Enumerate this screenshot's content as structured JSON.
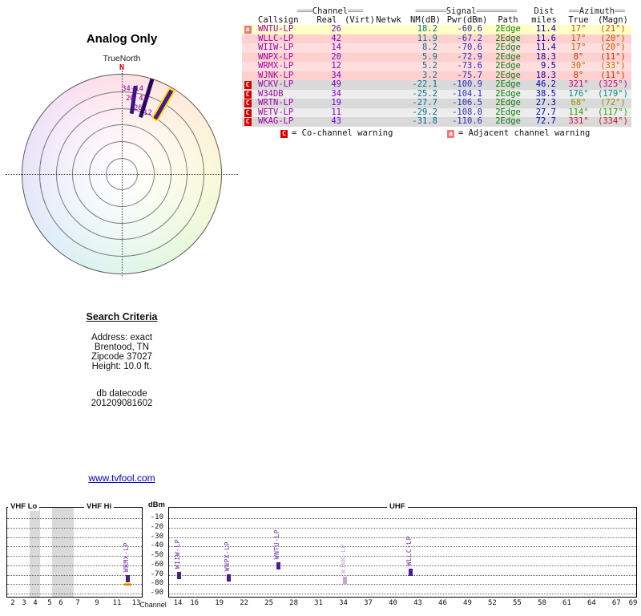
{
  "radar": {
    "title": "Analog Only",
    "orientation_label": "TrueNorth",
    "north_label": "N",
    "marker_labels": [
      "34-14",
      "20 42",
      "26",
      "12"
    ],
    "markers": [
      {
        "az": 8,
        "inner": 0.62,
        "outer": 0.9,
        "color": "#3c1480",
        "highlighted": false
      },
      {
        "az": 17,
        "inner": 0.6,
        "outer": 1.0,
        "color": "#22085c",
        "highlighted": false
      },
      {
        "az": 30,
        "inner": 0.64,
        "outer": 0.97,
        "color": "#4a1a90",
        "highlighted": true
      }
    ],
    "wheel_colors": [
      "#ffc9d4",
      "#ffdfc2",
      "#f7f4bd",
      "#dbf3c3",
      "#c9eedd",
      "#c8e2f4",
      "#d6d2f4",
      "#eccdf0",
      "#ffc9d4"
    ]
  },
  "table": {
    "group_headers": [
      {
        "pre": "═══",
        "label": "Channel",
        "post": "═══"
      },
      {
        "pre": "══════",
        "label": "Signal",
        "post": "════════"
      },
      {
        "pre": "",
        "label": "Dist",
        "post": ""
      },
      {
        "pre": "══",
        "label": "Azimuth",
        "post": "══"
      }
    ],
    "columns": [
      "Callsign",
      "Real",
      "(Virt)",
      "Netwk",
      "NM(dB)",
      "Pwr(dBm)",
      "Path",
      "miles",
      "True",
      "(Magn)"
    ],
    "rows": [
      {
        "badges": [
          "a"
        ],
        "callsign": "WNTU-LP",
        "real": "26",
        "virt": "",
        "netwk": "",
        "nm": "18.2",
        "pwr": "-60.6",
        "path": "2Edge",
        "miles": "11.4",
        "az_true": "17°",
        "az_magn": "(21°)",
        "az_color": "#c25400",
        "bg": "#ffffc6"
      },
      {
        "badges": [],
        "callsign": "WLLC-LP",
        "real": "42",
        "virt": "",
        "netwk": "",
        "nm": "11.9",
        "pwr": "-67.2",
        "path": "2Edge",
        "miles": "11.6",
        "az_true": "17°",
        "az_magn": "(20°)",
        "az_color": "#c25400",
        "bg": "#ffd0d0"
      },
      {
        "badges": [],
        "callsign": "WIIW-LP",
        "real": "14",
        "virt": "",
        "netwk": "",
        "nm": "8.2",
        "pwr": "-70.6",
        "path": "2Edge",
        "miles": "11.4",
        "az_true": "17°",
        "az_magn": "(20°)",
        "az_color": "#c25400",
        "bg": "#ffdede"
      },
      {
        "badges": [],
        "callsign": "WNPX-LP",
        "real": "20",
        "virt": "",
        "netwk": "",
        "nm": "5.9",
        "pwr": "-72.9",
        "path": "2Edge",
        "miles": "18.3",
        "az_true": "8°",
        "az_magn": "(11°)",
        "az_color": "#cc2e00",
        "bg": "#ffd0d0"
      },
      {
        "badges": [],
        "callsign": "WRMX-LP",
        "real": "12",
        "virt": "",
        "netwk": "",
        "nm": "5.2",
        "pwr": "-73.6",
        "path": "2Edge",
        "miles": "9.5",
        "az_true": "30°",
        "az_magn": "(33°)",
        "az_color": "#b07400",
        "bg": "#ffdede"
      },
      {
        "badges": [],
        "callsign": "WJNK-LP",
        "real": "34",
        "virt": "",
        "netwk": "",
        "nm": "3.2",
        "pwr": "-75.7",
        "path": "2Edge",
        "miles": "18.3",
        "az_true": "8°",
        "az_magn": "(11°)",
        "az_color": "#cc2e00",
        "bg": "#ffd0d0"
      },
      {
        "badges": [
          "C"
        ],
        "callsign": "WCKV-LP",
        "real": "49",
        "virt": "",
        "netwk": "",
        "nm": "-22.1",
        "pwr": "-100.9",
        "path": "2Edge",
        "miles": "46.2",
        "az_true": "321°",
        "az_magn": "(325°)",
        "az_color": "#d2006e",
        "bg": "#d9d9d9"
      },
      {
        "badges": [
          "C"
        ],
        "callsign": "W34DB",
        "real": "34",
        "virt": "",
        "netwk": "",
        "nm": "-25.2",
        "pwr": "-104.1",
        "path": "2Edge",
        "miles": "38.5",
        "az_true": "176°",
        "az_magn": "(179°)",
        "az_color": "#00888e",
        "bg": "#ededed"
      },
      {
        "badges": [
          "C"
        ],
        "callsign": "WRTN-LP",
        "real": "19",
        "virt": "",
        "netwk": "",
        "nm": "-27.7",
        "pwr": "-106.5",
        "path": "2Edge",
        "miles": "27.3",
        "az_true": "68°",
        "az_magn": "(72°)",
        "az_color": "#8f9400",
        "bg": "#d9d9d9"
      },
      {
        "badges": [
          "C"
        ],
        "callsign": "WETV-LP",
        "real": "11",
        "virt": "",
        "netwk": "",
        "nm": "-29.2",
        "pwr": "-108.0",
        "path": "2Edge",
        "miles": "27.7",
        "az_true": "114°",
        "az_magn": "(117°)",
        "az_color": "#2e9e00",
        "bg": "#ededed"
      },
      {
        "badges": [
          "C"
        ],
        "callsign": "WKAG-LP",
        "real": "43",
        "virt": "",
        "netwk": "",
        "nm": "-31.8",
        "pwr": "-110.6",
        "path": "2Edge",
        "miles": "72.7",
        "az_true": "331°",
        "az_magn": "(334°)",
        "az_color": "#cc103c",
        "bg": "#d9d9d9"
      }
    ]
  },
  "legend": {
    "co_badge": "C",
    "co_text": "= Co-channel warning",
    "adj_badge": "a",
    "adj_text": "= Adjacent channel warning"
  },
  "search": {
    "title": "Search Criteria",
    "lines": [
      "Address: exact",
      "Brentood, TN",
      "Zipcode 37027",
      "Height: 10.0 ft."
    ],
    "db_label": "db datecode",
    "db_value": "201209081602"
  },
  "link_text": "www.tvfool.com",
  "chart_data": {
    "type": "scatter",
    "title": "",
    "ylabel": "dBm",
    "xlabel": "Channel",
    "ylim": [
      -95,
      -5
    ],
    "grid": true,
    "y_ticks": [
      -10,
      -20,
      -30,
      -40,
      -50,
      -60,
      -70,
      -80,
      -90
    ],
    "panels": [
      {
        "id": "vhf",
        "band_labels": [
          "VHF Lo",
          "VHF Hi"
        ],
        "x_ticks": [
          2,
          3,
          4,
          5,
          6,
          7,
          9,
          11,
          13
        ]
      },
      {
        "id": "uhf",
        "band_labels": [
          "UHF"
        ],
        "x_ticks": [
          14,
          16,
          19,
          22,
          25,
          28,
          31,
          34,
          37,
          40,
          43,
          46,
          49,
          52,
          55,
          58,
          61,
          64,
          67,
          69
        ]
      }
    ],
    "stations": [
      {
        "callsign": "WRMX-LP",
        "channel": 12,
        "power_dbm": -73.6,
        "band": "VHF",
        "highlighted": true,
        "faded": false
      },
      {
        "callsign": "WIIW-LP",
        "channel": 14,
        "power_dbm": -70.6,
        "band": "UHF",
        "highlighted": false,
        "faded": false
      },
      {
        "callsign": "WNPX-LP",
        "channel": 20,
        "power_dbm": -72.9,
        "band": "UHF",
        "highlighted": false,
        "faded": false
      },
      {
        "callsign": "WNTU-LP",
        "channel": 26,
        "power_dbm": -60.6,
        "band": "UHF",
        "highlighted": false,
        "faded": false
      },
      {
        "callsign": "WJNK-LP",
        "channel": 34,
        "power_dbm": -75.7,
        "band": "UHF",
        "highlighted": false,
        "faded": true
      },
      {
        "callsign": "WLLC-LP",
        "channel": 42,
        "power_dbm": -67.2,
        "band": "UHF",
        "highlighted": false,
        "faded": false
      }
    ]
  },
  "colors": {
    "co_badge": "#dd0000",
    "adj_badge": "#f07878",
    "bar": "#4b1d8e",
    "bar_faded": "#c2a5dd",
    "station_label": "#6a28a8",
    "highlight_dash": "#ffc800",
    "marker_highlight": "#ffdf00",
    "link": "#0000bb"
  }
}
